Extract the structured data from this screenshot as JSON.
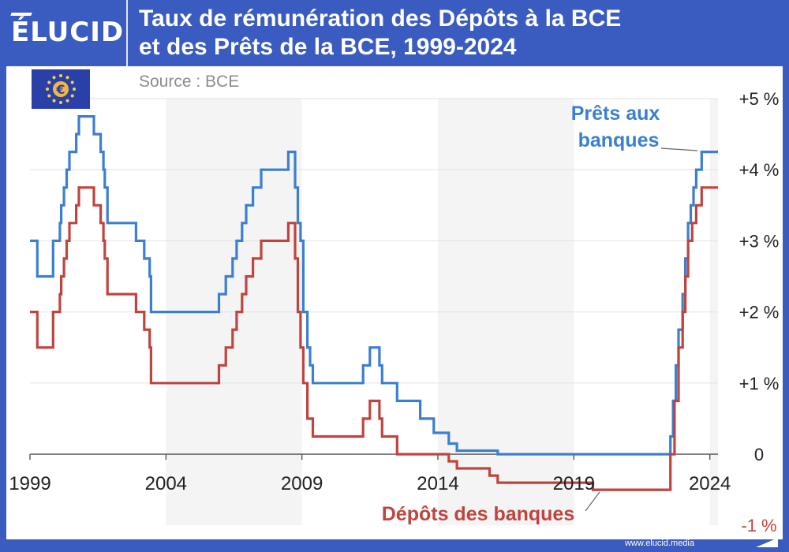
{
  "header": {
    "logo_text": "ÉLUCID",
    "title_line1": "Taux de rémunération des Dépôts à la BCE",
    "title_line2": "et des Prêts de la BCE, 1999-2024"
  },
  "flag_icon": "eu-flag-euro-icon",
  "source": "Source : BCE",
  "footer": {
    "url": "www.elucid.media"
  },
  "colors": {
    "header_bg": "#3a5bbf",
    "blue_series": "#3a7fd0",
    "red_series": "#c0443e",
    "band": "#f4f4f4",
    "grid": "#e2e2e2"
  },
  "chart_data": {
    "type": "line",
    "title": "Taux de rémunération des Dépôts à la BCE et des Prêts de la BCE, 1999-2024",
    "xlabel": "",
    "ylabel": "",
    "xlim": [
      1999,
      2024.3
    ],
    "ylim": [
      -1,
      5
    ],
    "x_ticks": [
      {
        "value": 1999,
        "label": "1999"
      },
      {
        "value": 2004,
        "label": "2004"
      },
      {
        "value": 2009,
        "label": "2009"
      },
      {
        "value": 2014,
        "label": "2014"
      },
      {
        "value": 2019,
        "label": "2019"
      },
      {
        "value": 2024,
        "label": "2024"
      }
    ],
    "y_ticks": [
      {
        "value": 5,
        "label": "+5 %"
      },
      {
        "value": 4,
        "label": "+4 %"
      },
      {
        "value": 3,
        "label": "+3 %"
      },
      {
        "value": 2,
        "label": "+2 %"
      },
      {
        "value": 1,
        "label": "+1 %"
      },
      {
        "value": 0,
        "label": "0"
      },
      {
        "value": -1,
        "label": "-1 %"
      }
    ],
    "grid": true,
    "series": [
      {
        "name": "Prêts aux banques",
        "color": "#3a7fd0",
        "points": [
          [
            1999.0,
            3.0
          ],
          [
            1999.27,
            2.5
          ],
          [
            1999.85,
            3.0
          ],
          [
            2000.1,
            3.25
          ],
          [
            2000.15,
            3.5
          ],
          [
            2000.25,
            3.75
          ],
          [
            2000.35,
            4.0
          ],
          [
            2000.45,
            4.25
          ],
          [
            2000.7,
            4.5
          ],
          [
            2000.8,
            4.75
          ],
          [
            2001.35,
            4.5
          ],
          [
            2001.6,
            4.25
          ],
          [
            2001.7,
            4.0
          ],
          [
            2001.75,
            3.75
          ],
          [
            2001.85,
            3.25
          ],
          [
            2002.9,
            3.0
          ],
          [
            2003.2,
            2.75
          ],
          [
            2003.4,
            2.5
          ],
          [
            2003.45,
            2.0
          ],
          [
            2005.95,
            2.25
          ],
          [
            2006.2,
            2.5
          ],
          [
            2006.45,
            2.75
          ],
          [
            2006.6,
            3.0
          ],
          [
            2006.8,
            3.25
          ],
          [
            2006.95,
            3.5
          ],
          [
            2007.2,
            3.75
          ],
          [
            2007.5,
            4.0
          ],
          [
            2008.5,
            4.25
          ],
          [
            2008.75,
            3.75
          ],
          [
            2008.85,
            3.25
          ],
          [
            2008.95,
            3.0
          ],
          [
            2009.05,
            2.0
          ],
          [
            2009.2,
            1.5
          ],
          [
            2009.3,
            1.25
          ],
          [
            2009.4,
            1.0
          ],
          [
            2011.25,
            1.25
          ],
          [
            2011.5,
            1.5
          ],
          [
            2011.85,
            1.25
          ],
          [
            2011.95,
            1.0
          ],
          [
            2012.5,
            0.75
          ],
          [
            2013.35,
            0.5
          ],
          [
            2013.85,
            0.3
          ],
          [
            2014.4,
            0.15
          ],
          [
            2014.7,
            0.05
          ],
          [
            2016.2,
            0.0
          ],
          [
            2022.55,
            0.25
          ],
          [
            2022.65,
            0.75
          ],
          [
            2022.75,
            1.25
          ],
          [
            2022.85,
            1.75
          ],
          [
            2023.0,
            2.25
          ],
          [
            2023.1,
            2.75
          ],
          [
            2023.2,
            3.25
          ],
          [
            2023.3,
            3.5
          ],
          [
            2023.4,
            3.75
          ],
          [
            2023.5,
            4.0
          ],
          [
            2023.7,
            4.25
          ],
          [
            2024.3,
            4.25
          ]
        ]
      },
      {
        "name": "Dépôts des banques",
        "color": "#c0443e",
        "points": [
          [
            1999.0,
            2.0
          ],
          [
            1999.27,
            1.5
          ],
          [
            1999.85,
            2.0
          ],
          [
            2000.1,
            2.25
          ],
          [
            2000.15,
            2.5
          ],
          [
            2000.25,
            2.75
          ],
          [
            2000.35,
            3.0
          ],
          [
            2000.45,
            3.25
          ],
          [
            2000.7,
            3.5
          ],
          [
            2000.8,
            3.75
          ],
          [
            2001.35,
            3.5
          ],
          [
            2001.6,
            3.25
          ],
          [
            2001.7,
            3.0
          ],
          [
            2001.75,
            2.75
          ],
          [
            2001.85,
            2.25
          ],
          [
            2002.9,
            2.0
          ],
          [
            2003.2,
            1.75
          ],
          [
            2003.4,
            1.5
          ],
          [
            2003.45,
            1.0
          ],
          [
            2005.95,
            1.25
          ],
          [
            2006.2,
            1.5
          ],
          [
            2006.45,
            1.75
          ],
          [
            2006.6,
            2.0
          ],
          [
            2006.8,
            2.25
          ],
          [
            2006.95,
            2.5
          ],
          [
            2007.2,
            2.75
          ],
          [
            2007.5,
            3.0
          ],
          [
            2008.5,
            3.25
          ],
          [
            2008.75,
            2.75
          ],
          [
            2008.85,
            2.0
          ],
          [
            2008.95,
            1.5
          ],
          [
            2009.05,
            1.0
          ],
          [
            2009.2,
            0.5
          ],
          [
            2009.4,
            0.25
          ],
          [
            2011.25,
            0.5
          ],
          [
            2011.5,
            0.75
          ],
          [
            2011.85,
            0.5
          ],
          [
            2011.95,
            0.25
          ],
          [
            2012.5,
            0.0
          ],
          [
            2014.4,
            -0.1
          ],
          [
            2014.7,
            -0.2
          ],
          [
            2015.9,
            -0.3
          ],
          [
            2016.2,
            -0.4
          ],
          [
            2019.7,
            -0.5
          ],
          [
            2022.55,
            0.0
          ],
          [
            2022.7,
            0.75
          ],
          [
            2022.85,
            1.5
          ],
          [
            2023.0,
            2.0
          ],
          [
            2023.1,
            2.5
          ],
          [
            2023.2,
            3.0
          ],
          [
            2023.35,
            3.25
          ],
          [
            2023.5,
            3.5
          ],
          [
            2023.7,
            3.75
          ],
          [
            2024.3,
            3.75
          ]
        ]
      }
    ],
    "annotations": [
      {
        "text": "Prêts aux",
        "series": "Prêts aux banques"
      },
      {
        "text": "banques",
        "series": "Prêts aux banques"
      },
      {
        "text": "Dépôts des banques",
        "series": "Dépôts des banques"
      }
    ]
  }
}
